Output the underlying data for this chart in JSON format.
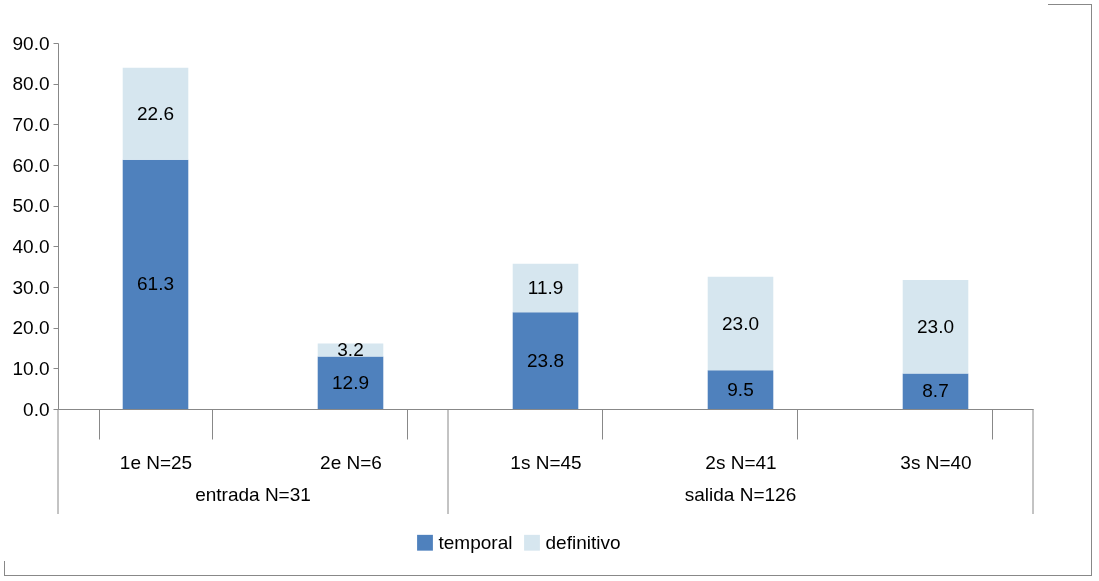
{
  "chart_data": {
    "type": "bar",
    "stacked": true,
    "categories": [
      "1e N=25",
      "2e N=6",
      "1s N=45",
      "2s N=41",
      "3s N=40"
    ],
    "series": [
      {
        "name": "temporal",
        "color": "#4f81bd",
        "values": [
          61.3,
          12.9,
          23.8,
          9.5,
          8.7
        ],
        "value_labels": [
          "61.3",
          "12.9",
          "23.8",
          "9.5",
          "8.7"
        ]
      },
      {
        "name": "definitivo",
        "color": "#d6e6ef",
        "values": [
          22.6,
          3.2,
          11.9,
          23.0,
          23.0
        ],
        "value_labels": [
          "22.6",
          "3.2",
          "11.9",
          "23.0",
          "23.0"
        ]
      }
    ],
    "ylim": [
      0,
      90
    ],
    "yticks": [
      {
        "value": 0,
        "label": "0.0"
      },
      {
        "value": 10,
        "label": "10.0"
      },
      {
        "value": 20,
        "label": "20.0"
      },
      {
        "value": 30,
        "label": "30.0"
      },
      {
        "value": 40,
        "label": "40.0"
      },
      {
        "value": 50,
        "label": "50.0"
      },
      {
        "value": 60,
        "label": "60.0"
      },
      {
        "value": 70,
        "label": "70.0"
      },
      {
        "value": 80,
        "label": "80.0"
      },
      {
        "value": 90,
        "label": "90.0"
      }
    ],
    "grid": false,
    "legend": "bottom",
    "annotations": [
      "entrada N=31",
      "salida N=126"
    ]
  }
}
